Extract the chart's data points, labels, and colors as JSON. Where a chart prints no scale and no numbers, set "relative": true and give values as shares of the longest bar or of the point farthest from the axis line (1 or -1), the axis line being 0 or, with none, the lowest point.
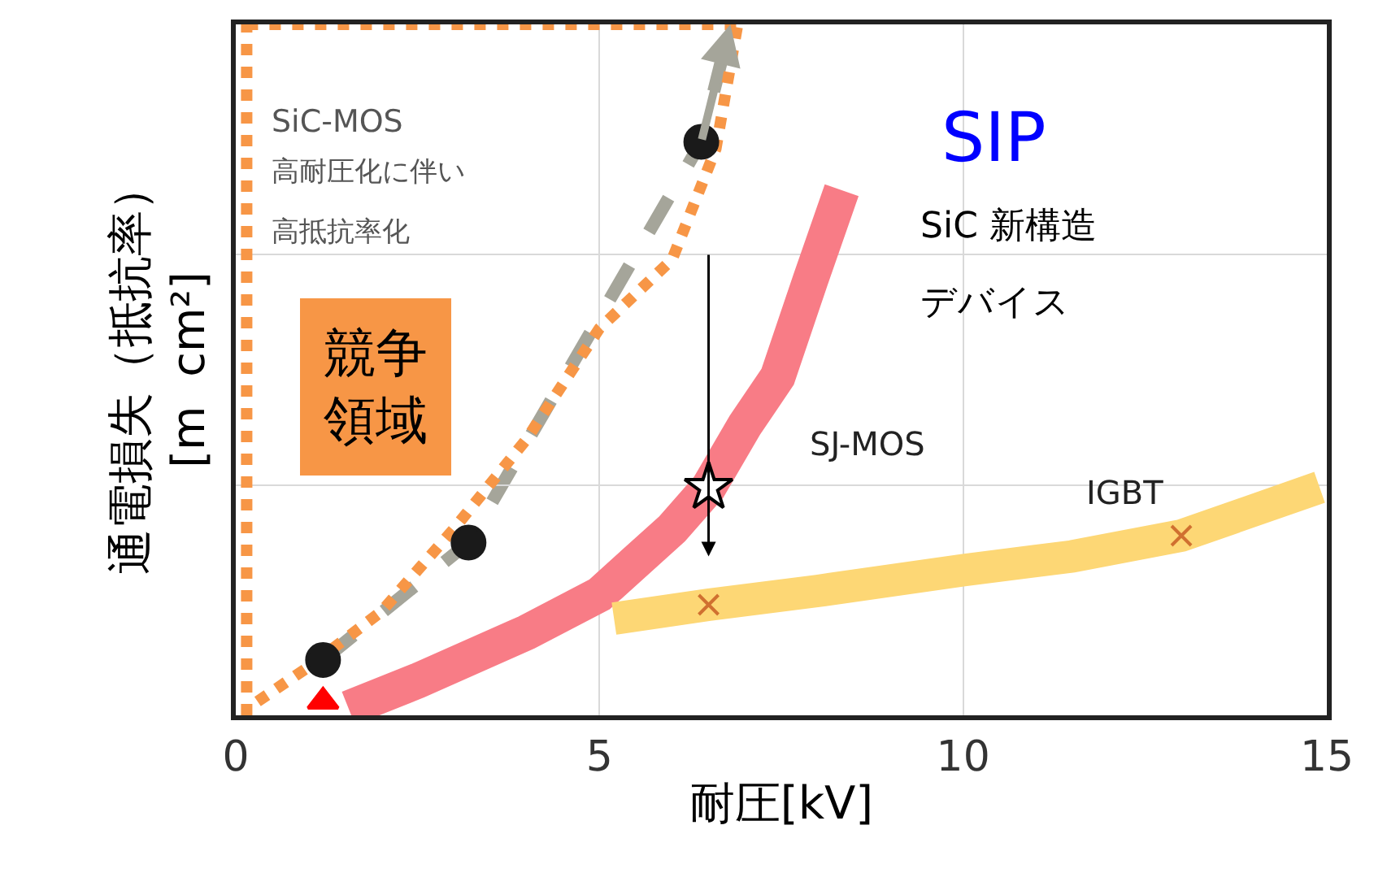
{
  "chart_data": {
    "type": "line",
    "relative": true,
    "xlabel": "耐圧[kV]",
    "ylabel": "通電損失（抵抗率）\n[m  cm²]",
    "xlim": [
      0,
      15
    ],
    "xticks": [
      0,
      5,
      10,
      15
    ],
    "grid": true,
    "ref_lines": [
      {
        "axis": "x",
        "value": 0.15,
        "color": "#f79646",
        "line_style": "dotted"
      }
    ],
    "series": [
      {
        "color": "#f79646",
        "line_style": "dotted",
        "x": [
          0.15,
          6.9
        ],
        "values": [
          1.0,
          1.0
        ]
      },
      {
        "color": "#f79646",
        "line_style": "dotted",
        "x": [
          0.3,
          1.0,
          2.0,
          3.0,
          4.0,
          5.0,
          6.0,
          6.6,
          6.9
        ],
        "values": [
          0.02,
          0.07,
          0.15,
          0.27,
          0.4,
          0.56,
          0.66,
          0.82,
          1.0
        ]
      },
      {
        "color": "#f87c86",
        "x": [
          1.55,
          2.5,
          4.0,
          5.0,
          6.0,
          6.5,
          7.0,
          7.45,
          7.9,
          8.33
        ],
        "values": [
          0.01,
          0.05,
          0.12,
          0.175,
          0.27,
          0.33,
          0.42,
          0.49,
          0.63,
          0.76
        ]
      },
      {
        "color": "#fdd775",
        "x": [
          5.2,
          6.5,
          8.0,
          10.0,
          11.5,
          13.0,
          14.9
        ],
        "values": [
          0.14,
          0.16,
          0.18,
          0.21,
          0.23,
          0.26,
          0.33
        ]
      },
      {
        "type": "scatter",
        "color": "#1a1a1a",
        "marker": "circle",
        "x": [
          1.2,
          3.2,
          6.4
        ],
        "values": [
          0.08,
          0.25,
          0.83
        ]
      },
      {
        "type": "scatter",
        "color": "#ff0000",
        "marker": "triangle",
        "x": [
          1.2
        ],
        "values": [
          0.02
        ]
      },
      {
        "type": "scatter",
        "color": "#d07030",
        "marker": "cross",
        "x": [
          6.5,
          13.0
        ],
        "values": [
          0.16,
          0.26
        ]
      },
      {
        "type": "scatter",
        "color": "#ffffff",
        "marker": "star",
        "x": [
          6.5
        ],
        "values": [
          0.33
        ]
      }
    ],
    "annotations": [
      "SiC-MOS",
      "高耐圧化に伴い",
      "高抵抗率化",
      "競争領域",
      "SIP",
      "SiC 新構造",
      "デバイス",
      "SJ-MOS",
      "IGBT"
    ]
  }
}
